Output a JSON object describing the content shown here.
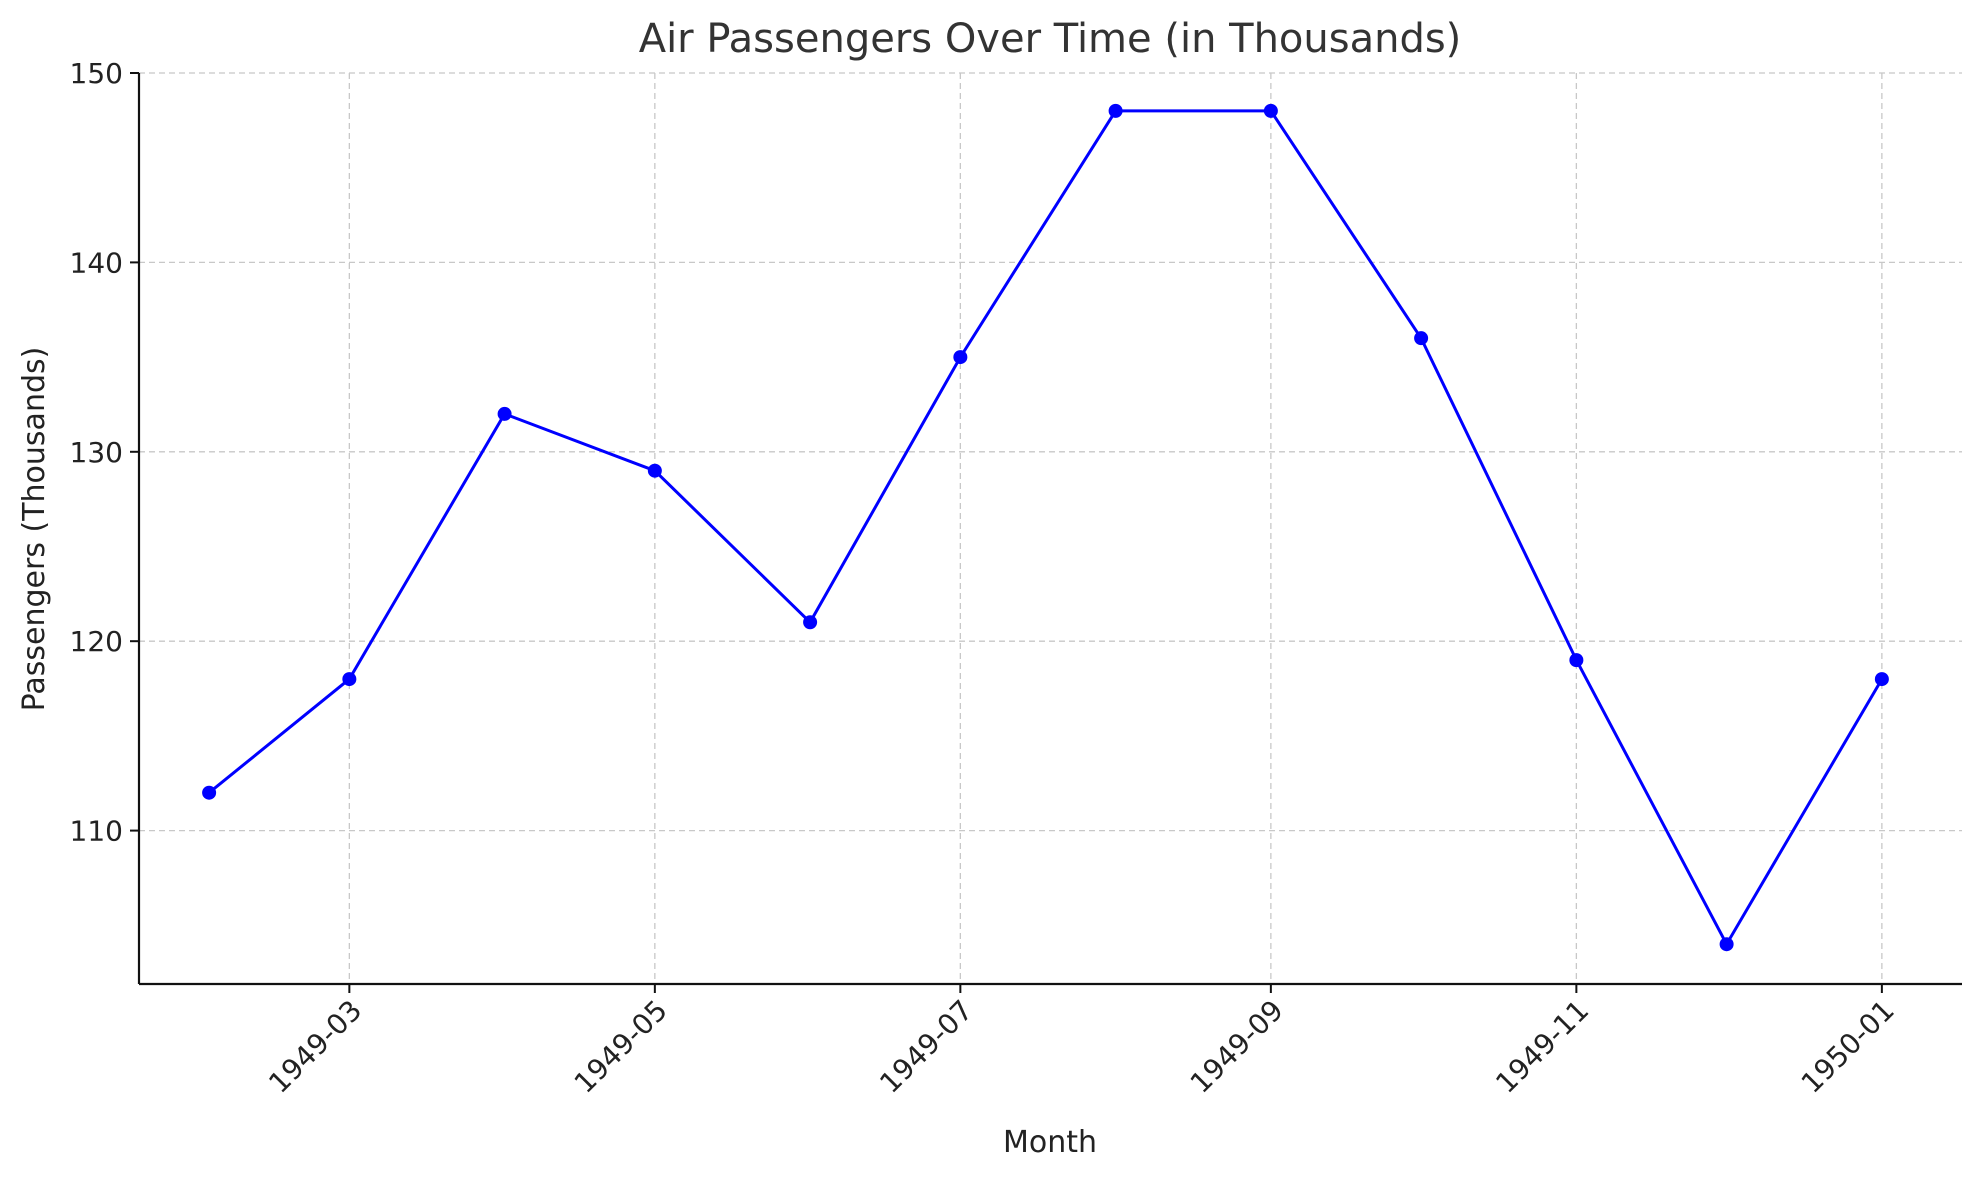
{
  "chart_data": {
    "type": "line",
    "title": "Air Passengers Over Time (in Thousands)",
    "xlabel": "Month",
    "ylabel": "Passengers (Thousands)",
    "x": [
      "1949-02-01",
      "1949-03-01",
      "1949-04-01",
      "1949-05-01",
      "1949-06-01",
      "1949-07-01",
      "1949-08-01",
      "1949-09-01",
      "1949-10-01",
      "1949-11-01",
      "1949-12-01",
      "1950-01-01"
    ],
    "series": [
      {
        "color": "#0000ff",
        "marker": "circle",
        "values": [
          112,
          118,
          132,
          129,
          121,
          135,
          148,
          148,
          136,
          119,
          104,
          118
        ]
      }
    ],
    "x_ticks": [
      "1949-03",
      "1949-05",
      "1949-07",
      "1949-09",
      "1949-11",
      "1950-01"
    ],
    "x_tick_dates": [
      "1949-03-01",
      "1949-05-01",
      "1949-07-01",
      "1949-09-01",
      "1949-11-01",
      "1950-01-01"
    ],
    "y_ticks": [
      110,
      120,
      130,
      140,
      150
    ],
    "xlim": [
      "1949-01-18",
      "1950-01-17"
    ],
    "ylim": [
      101.9,
      150
    ],
    "grid": true,
    "legend": "none"
  }
}
